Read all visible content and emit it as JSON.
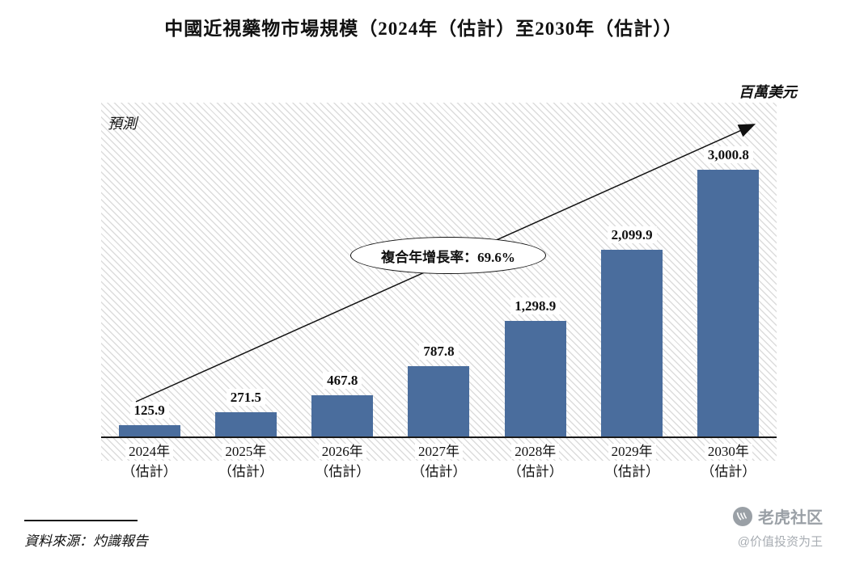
{
  "page": {
    "title": "中國近視藥物市場規模（2024年（估計）至2030年（估計））",
    "unit_label": "百萬美元",
    "forecast_label": "預測",
    "source": "資料來源：灼識報告",
    "watermark": {
      "brand": "老虎社区",
      "handle": "@价值投资为王",
      "logo_icon": "tiger-logo-icon"
    }
  },
  "chart_data": {
    "type": "bar",
    "title": "中國近視藥物市場規模（2024年（估計）至2030年（估計））",
    "ylabel": "百萬美元",
    "xlabel": "",
    "ylim": [
      0,
      3100
    ],
    "grid": false,
    "categories": [
      {
        "year": "2024年",
        "note": "（估計）"
      },
      {
        "year": "2025年",
        "note": "（估計）"
      },
      {
        "year": "2026年",
        "note": "（估計）"
      },
      {
        "year": "2027年",
        "note": "（估計）"
      },
      {
        "year": "2028年",
        "note": "（估計）"
      },
      {
        "year": "2029年",
        "note": "（估計）"
      },
      {
        "year": "2030年",
        "note": "（估計）"
      }
    ],
    "values": [
      125.9,
      271.5,
      467.8,
      787.8,
      1298.9,
      2099.9,
      3000.8
    ],
    "value_labels": [
      "125.9",
      "271.5",
      "467.8",
      "787.8",
      "1,298.9",
      "2,099.9",
      "3,000.8"
    ],
    "bar_color": "#4a6d9d",
    "annotations": {
      "cagr_label": "複合年增長率：69.6%",
      "forecast_label": "預測",
      "trend_arrow": "up-right"
    }
  }
}
